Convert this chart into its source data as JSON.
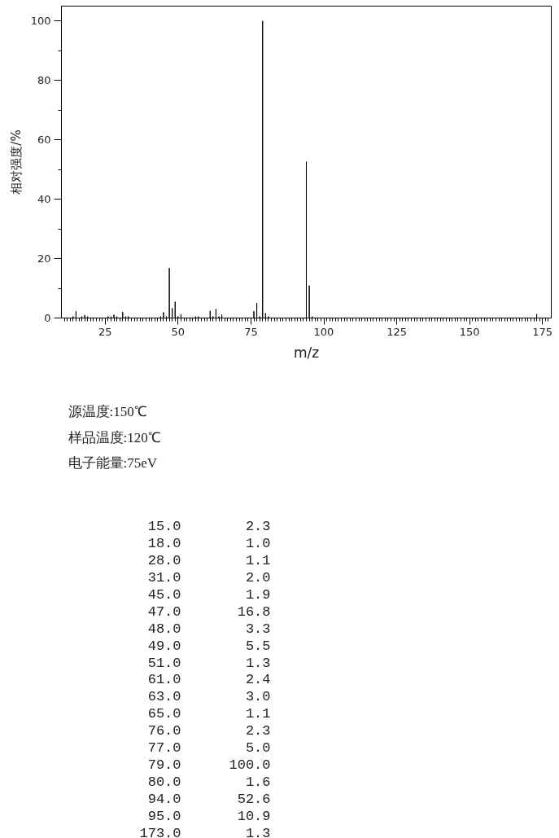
{
  "chart_data": {
    "type": "bar",
    "xlabel": "m/z",
    "ylabel": "相对强度/%",
    "x": [
      14,
      15,
      17,
      18,
      19,
      26,
      27,
      28,
      29,
      31,
      32,
      33,
      44,
      45,
      46,
      47,
      48,
      49,
      50,
      51,
      56,
      57,
      61,
      62,
      63,
      64,
      65,
      76,
      77,
      78,
      79,
      80,
      81,
      94,
      95,
      96,
      173
    ],
    "values": [
      0.5,
      2.3,
      0.5,
      1.0,
      0.5,
      0.5,
      0.5,
      1.1,
      0.5,
      2.0,
      0.5,
      0.5,
      0.5,
      1.9,
      0.5,
      16.8,
      3.3,
      5.5,
      0.5,
      1.3,
      0.5,
      0.5,
      2.4,
      0.5,
      3.0,
      0.5,
      1.1,
      2.3,
      5.0,
      0.5,
      100.0,
      1.6,
      0.5,
      52.6,
      10.9,
      0.5,
      1.3
    ],
    "color": "#000000",
    "xlim": [
      10,
      178
    ],
    "ylim": [
      0,
      105
    ],
    "xticks": [
      {
        "value": 11,
        "label": null
      },
      {
        "value": 12,
        "label": null
      },
      {
        "value": 13,
        "label": null
      },
      {
        "value": 14,
        "label": null
      },
      {
        "value": 15,
        "label": null
      },
      {
        "value": 16,
        "label": null
      },
      {
        "value": 17,
        "label": null
      },
      {
        "value": 18,
        "label": null
      },
      {
        "value": 19,
        "label": null
      },
      {
        "value": 20,
        "label": null
      },
      {
        "value": 21,
        "label": null
      },
      {
        "value": 22,
        "label": null
      },
      {
        "value": 23,
        "label": null
      },
      {
        "value": 24,
        "label": null
      },
      25,
      {
        "value": 26,
        "label": null
      },
      {
        "value": 27,
        "label": null
      },
      {
        "value": 28,
        "label": null
      },
      {
        "value": 29,
        "label": null
      },
      {
        "value": 30,
        "label": null
      },
      {
        "value": 31,
        "label": null
      },
      {
        "value": 32,
        "label": null
      },
      {
        "value": 33,
        "label": null
      },
      {
        "value": 34,
        "label": null
      },
      {
        "value": 35,
        "label": null
      },
      {
        "value": 36,
        "label": null
      },
      {
        "value": 37,
        "label": null
      },
      {
        "value": 38,
        "label": null
      },
      {
        "value": 39,
        "label": null
      },
      {
        "value": 40,
        "label": null
      },
      {
        "value": 41,
        "label": null
      },
      {
        "value": 42,
        "label": null
      },
      {
        "value": 43,
        "label": null
      },
      {
        "value": 44,
        "label": null
      },
      {
        "value": 45,
        "label": null
      },
      {
        "value": 46,
        "label": null
      },
      {
        "value": 47,
        "label": null
      },
      {
        "value": 48,
        "label": null
      },
      {
        "value": 49,
        "label": null
      },
      50,
      {
        "value": 51,
        "label": null
      },
      {
        "value": 52,
        "label": null
      },
      {
        "value": 53,
        "label": null
      },
      {
        "value": 54,
        "label": null
      },
      {
        "value": 55,
        "label": null
      },
      {
        "value": 56,
        "label": null
      },
      {
        "value": 57,
        "label": null
      },
      {
        "value": 58,
        "label": null
      },
      {
        "value": 59,
        "label": null
      },
      {
        "value": 60,
        "label": null
      },
      {
        "value": 61,
        "label": null
      },
      {
        "value": 62,
        "label": null
      },
      {
        "value": 63,
        "label": null
      },
      {
        "value": 64,
        "label": null
      },
      {
        "value": 65,
        "label": null
      },
      {
        "value": 66,
        "label": null
      },
      {
        "value": 67,
        "label": null
      },
      {
        "value": 68,
        "label": null
      },
      {
        "value": 69,
        "label": null
      },
      {
        "value": 70,
        "label": null
      },
      {
        "value": 71,
        "label": null
      },
      {
        "value": 72,
        "label": null
      },
      {
        "value": 73,
        "label": null
      },
      {
        "value": 74,
        "label": null
      },
      75,
      {
        "value": 76,
        "label": null
      },
      {
        "value": 77,
        "label": null
      },
      {
        "value": 78,
        "label": null
      },
      {
        "value": 79,
        "label": null
      },
      {
        "value": 80,
        "label": null
      },
      {
        "value": 81,
        "label": null
      },
      {
        "value": 82,
        "label": null
      },
      {
        "value": 83,
        "label": null
      },
      {
        "value": 84,
        "label": null
      },
      {
        "value": 85,
        "label": null
      },
      {
        "value": 86,
        "label": null
      },
      {
        "value": 87,
        "label": null
      },
      {
        "value": 88,
        "label": null
      },
      {
        "value": 89,
        "label": null
      },
      {
        "value": 90,
        "label": null
      },
      {
        "value": 91,
        "label": null
      },
      {
        "value": 92,
        "label": null
      },
      {
        "value": 93,
        "label": null
      },
      {
        "value": 94,
        "label": null
      },
      {
        "value": 95,
        "label": null
      },
      {
        "value": 96,
        "label": null
      },
      {
        "value": 97,
        "label": null
      },
      {
        "value": 98,
        "label": null
      },
      {
        "value": 99,
        "label": null
      },
      100,
      {
        "value": 101,
        "label": null
      },
      {
        "value": 102,
        "label": null
      },
      {
        "value": 103,
        "label": null
      },
      {
        "value": 104,
        "label": null
      },
      {
        "value": 105,
        "label": null
      },
      {
        "value": 106,
        "label": null
      },
      {
        "value": 107,
        "label": null
      },
      {
        "value": 108,
        "label": null
      },
      {
        "value": 109,
        "label": null
      },
      {
        "value": 110,
        "label": null
      },
      {
        "value": 111,
        "label": null
      },
      {
        "value": 112,
        "label": null
      },
      {
        "value": 113,
        "label": null
      },
      {
        "value": 114,
        "label": null
      },
      {
        "value": 115,
        "label": null
      },
      {
        "value": 116,
        "label": null
      },
      {
        "value": 117,
        "label": null
      },
      {
        "value": 118,
        "label": null
      },
      {
        "value": 119,
        "label": null
      },
      {
        "value": 120,
        "label": null
      },
      {
        "value": 121,
        "label": null
      },
      {
        "value": 122,
        "label": null
      },
      {
        "value": 123,
        "label": null
      },
      {
        "value": 124,
        "label": null
      },
      125,
      {
        "value": 126,
        "label": null
      },
      {
        "value": 127,
        "label": null
      },
      {
        "value": 128,
        "label": null
      },
      {
        "value": 129,
        "label": null
      },
      {
        "value": 130,
        "label": null
      },
      {
        "value": 131,
        "label": null
      },
      {
        "value": 132,
        "label": null
      },
      {
        "value": 133,
        "label": null
      },
      {
        "value": 134,
        "label": null
      },
      {
        "value": 135,
        "label": null
      },
      {
        "value": 136,
        "label": null
      },
      {
        "value": 137,
        "label": null
      },
      {
        "value": 138,
        "label": null
      },
      {
        "value": 139,
        "label": null
      },
      {
        "value": 140,
        "label": null
      },
      {
        "value": 141,
        "label": null
      },
      {
        "value": 142,
        "label": null
      },
      {
        "value": 143,
        "label": null
      },
      {
        "value": 144,
        "label": null
      },
      {
        "value": 145,
        "label": null
      },
      {
        "value": 146,
        "label": null
      },
      {
        "value": 147,
        "label": null
      },
      {
        "value": 148,
        "label": null
      },
      {
        "value": 149,
        "label": null
      },
      150,
      {
        "value": 151,
        "label": null
      },
      {
        "value": 152,
        "label": null
      },
      {
        "value": 153,
        "label": null
      },
      {
        "value": 154,
        "label": null
      },
      {
        "value": 155,
        "label": null
      },
      {
        "value": 156,
        "label": null
      },
      {
        "value": 157,
        "label": null
      },
      {
        "value": 158,
        "label": null
      },
      {
        "value": 159,
        "label": null
      },
      {
        "value": 160,
        "label": null
      },
      {
        "value": 161,
        "label": null
      },
      {
        "value": 162,
        "label": null
      },
      {
        "value": 163,
        "label": null
      },
      {
        "value": 164,
        "label": null
      },
      {
        "value": 165,
        "label": null
      },
      {
        "value": 166,
        "label": null
      },
      {
        "value": 167,
        "label": null
      },
      {
        "value": 168,
        "label": null
      },
      {
        "value": 169,
        "label": null
      },
      {
        "value": 170,
        "label": null
      },
      {
        "value": 171,
        "label": null
      },
      {
        "value": 172,
        "label": null
      },
      {
        "value": 173,
        "label": null
      },
      {
        "value": 174,
        "label": null
      },
      175,
      {
        "value": 176,
        "label": null
      },
      {
        "value": 177,
        "label": null
      }
    ],
    "yticks": [
      0,
      {
        "value": 10,
        "label": null
      },
      20,
      {
        "value": 30,
        "label": null
      },
      40,
      {
        "value": 50,
        "label": null
      },
      60,
      {
        "value": 70,
        "label": null
      },
      80,
      {
        "value": 90,
        "label": null
      },
      100
    ],
    "annotations": [
      "源温度:150℃",
      "样品温度:120℃",
      "电子能量:75eV",
      "15.0",
      "2.3",
      "18.0",
      "1.0",
      "28.0",
      "1.1",
      "31.0",
      "2.0",
      "45.0",
      "1.9",
      "47.0",
      "16.8",
      "48.0",
      "3.3",
      "49.0",
      "5.5",
      "51.0",
      "1.3",
      "61.0",
      "2.4",
      "63.0",
      "3.0",
      "65.0",
      "1.1",
      "76.0",
      "2.3",
      "77.0",
      "5.0",
      "79.0",
      "100.0",
      "80.0",
      "1.6",
      "94.0",
      "52.6",
      "95.0",
      "10.9",
      "173.0",
      "1.3"
    ]
  }
}
